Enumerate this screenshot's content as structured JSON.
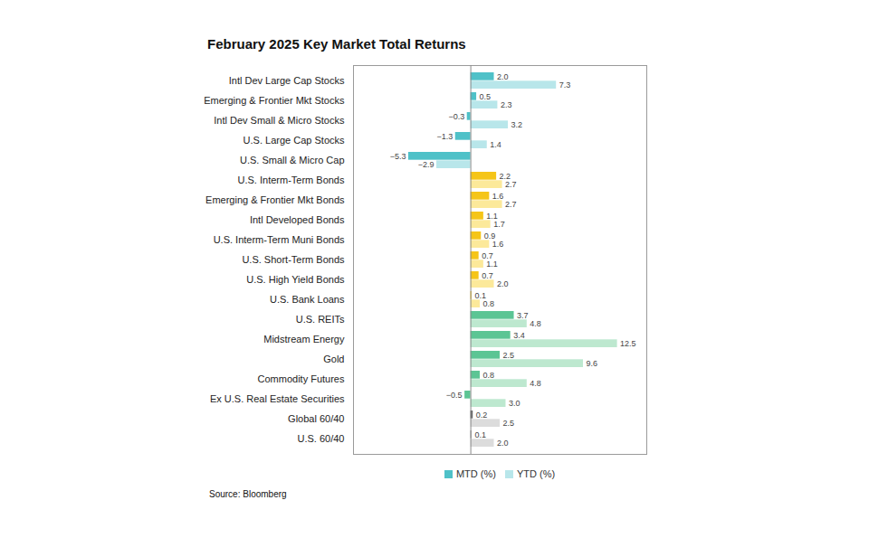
{
  "chart_data": {
    "type": "bar",
    "title": "February 2025 Key Market Total Returns",
    "source": "Source: Bloomberg",
    "orientation": "horizontal",
    "data_labels": true,
    "tick_labels": "y",
    "legend": "bottom",
    "xlim": [
      -10,
      15
    ],
    "categories": [
      "Intl Dev Large Cap Stocks",
      "Emerging & Frontier Mkt Stocks",
      "Intl Dev Small & Micro Stocks",
      "U.S. Large Cap Stocks",
      "U.S. Small & Micro Cap",
      "U.S. Interm-Term Bonds",
      "Emerging & Frontier Mkt Bonds",
      "Intl Developed Bonds",
      "U.S. Interm-Term Muni Bonds",
      "U.S. Short-Term Bonds",
      "U.S. High Yield Bonds",
      "U.S. Bank Loans",
      "U.S. REITs",
      "Midstream Energy",
      "Gold",
      "Commodity Futures",
      "Ex U.S. Real Estate Securities",
      "Global 60/40",
      "U.S. 60/40"
    ],
    "series": [
      {
        "name": "MTD (%)",
        "color": "#4fc1c8",
        "values": [
          2.0,
          0.5,
          -0.3,
          -1.3,
          -5.3,
          2.2,
          1.6,
          1.1,
          0.9,
          0.7,
          0.7,
          0.1,
          3.7,
          3.4,
          2.5,
          0.8,
          -0.5,
          0.2,
          0.1
        ],
        "value_labels": [
          "2.0",
          "0.5",
          "−0.3",
          "−1.3",
          "−5.3",
          "2.2",
          "1.6",
          "1.1",
          "0.9",
          "0.7",
          "0.7",
          "0.1",
          "3.7",
          "3.4",
          "2.5",
          "0.8",
          "−0.5",
          "0.2",
          "0.1"
        ],
        "colors": [
          "#4fc1c8",
          "#4fc1c8",
          "#4fc1c8",
          "#4fc1c8",
          "#4fc1c8",
          "#f5c518",
          "#f5c518",
          "#f5c518",
          "#f5c518",
          "#f5c518",
          "#f5c518",
          "#f5c518",
          "#5cc594",
          "#5cc594",
          "#5cc594",
          "#5cc594",
          "#5cc594",
          "#666666",
          "#999999"
        ]
      },
      {
        "name": "YTD (%)",
        "color": "#b8e6ea",
        "values": [
          7.3,
          2.3,
          3.2,
          1.4,
          -2.9,
          2.7,
          2.7,
          1.7,
          1.6,
          1.1,
          2.0,
          0.8,
          4.8,
          12.5,
          9.6,
          4.8,
          3.0,
          2.5,
          2.0
        ],
        "value_labels": [
          "7.3",
          "2.3",
          "3.2",
          "1.4",
          "−2.9",
          "2.7",
          "2.7",
          "1.7",
          "1.6",
          "1.1",
          "2.0",
          "0.8",
          "4.8",
          "12.5",
          "9.6",
          "4.8",
          "3.0",
          "2.5",
          "2.0"
        ],
        "colors": [
          "#b8e6ea",
          "#b8e6ea",
          "#b8e6ea",
          "#b8e6ea",
          "#b8e6ea",
          "#fce99a",
          "#fce99a",
          "#fce99a",
          "#fce99a",
          "#fce99a",
          "#fce99a",
          "#fce99a",
          "#bde8cf",
          "#bde8cf",
          "#bde8cf",
          "#bde8cf",
          "#bde8cf",
          "#dcdcdc",
          "#dcdcdc"
        ]
      }
    ]
  }
}
